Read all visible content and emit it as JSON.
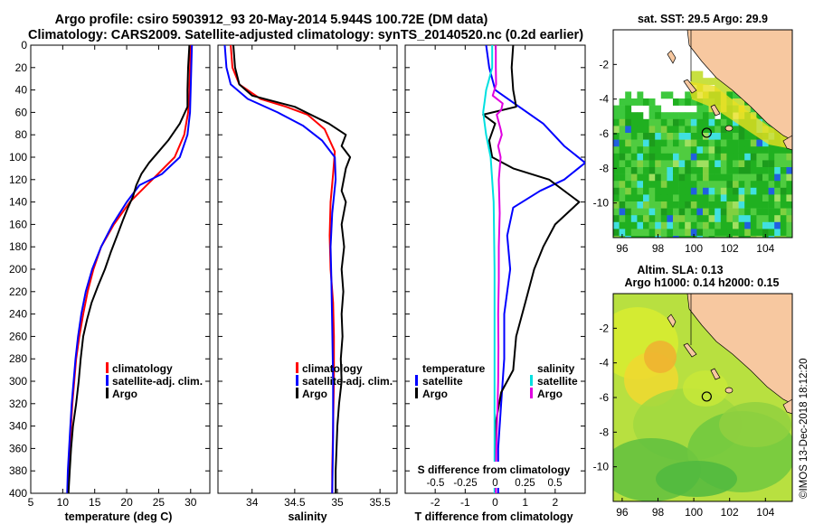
{
  "title": {
    "line1": "Argo profile: csiro 5903912_93 20-May-2014 5.944S 100.72E (DM data)",
    "line2": "Climatology: CARS2009. Satellite-adjusted climatology: synTS_20140520.nc (0.2d earlier)"
  },
  "colors": {
    "clim": "#ff0000",
    "sat": "#0000ff",
    "argo": "#000000",
    "sdiff": "#00e0e0",
    "sdiff_sat": "#e000e0"
  },
  "chart_data": [
    {
      "type": "line",
      "id": "temperature",
      "xlabel": "temperature (deg C)",
      "xlim": [
        5,
        33
      ],
      "ylim": [
        0,
        400
      ],
      "xticks": [
        5,
        10,
        15,
        20,
        25,
        30
      ],
      "yticks": [
        0,
        20,
        40,
        60,
        80,
        100,
        120,
        140,
        160,
        180,
        200,
        220,
        240,
        260,
        280,
        300,
        320,
        340,
        360,
        380,
        400
      ],
      "legend": [
        "climatology",
        "satellite-adj. clim.",
        "Argo"
      ],
      "series": [
        {
          "name": "climatology",
          "color": "clim",
          "points": [
            [
              30,
              0
            ],
            [
              29.9,
              20
            ],
            [
              29.8,
              40
            ],
            [
              29.6,
              60
            ],
            [
              29,
              80
            ],
            [
              27.5,
              100
            ],
            [
              24,
              120
            ],
            [
              20.5,
              140
            ],
            [
              18,
              160
            ],
            [
              16,
              180
            ],
            [
              14.8,
              200
            ],
            [
              13.9,
              220
            ],
            [
              13.2,
              240
            ],
            [
              12.6,
              260
            ],
            [
              12.1,
              280
            ],
            [
              11.8,
              300
            ],
            [
              11.5,
              320
            ],
            [
              11.3,
              340
            ],
            [
              11.1,
              360
            ],
            [
              10.9,
              380
            ],
            [
              10.8,
              400
            ]
          ]
        },
        {
          "name": "satellite-adj. clim.",
          "color": "sat",
          "points": [
            [
              30.2,
              0
            ],
            [
              30.1,
              20
            ],
            [
              30,
              40
            ],
            [
              29.9,
              60
            ],
            [
              29.5,
              80
            ],
            [
              28.3,
              100
            ],
            [
              25.5,
              115
            ],
            [
              22,
              125
            ],
            [
              20,
              140
            ],
            [
              17.8,
              160
            ],
            [
              16,
              180
            ],
            [
              14.6,
              200
            ],
            [
              13.6,
              220
            ],
            [
              12.9,
              240
            ],
            [
              12.4,
              260
            ],
            [
              12,
              280
            ],
            [
              11.7,
              300
            ],
            [
              11.4,
              320
            ],
            [
              11.2,
              340
            ],
            [
              11,
              360
            ],
            [
              10.8,
              380
            ],
            [
              10.7,
              400
            ]
          ]
        },
        {
          "name": "Argo",
          "color": "argo",
          "points": [
            [
              29.8,
              0
            ],
            [
              29.6,
              20
            ],
            [
              29.5,
              40
            ],
            [
              29.5,
              55
            ],
            [
              28.3,
              70
            ],
            [
              26.5,
              85
            ],
            [
              25,
              95
            ],
            [
              23.5,
              105
            ],
            [
              22.3,
              115
            ],
            [
              21.5,
              125
            ],
            [
              21,
              135
            ],
            [
              20.2,
              145
            ],
            [
              19.5,
              155
            ],
            [
              18.5,
              170
            ],
            [
              17.5,
              185
            ],
            [
              16.6,
              200
            ],
            [
              15.5,
              215
            ],
            [
              14.5,
              230
            ],
            [
              13.8,
              245
            ],
            [
              13.2,
              260
            ],
            [
              12.8,
              280
            ],
            [
              12.5,
              300
            ],
            [
              12.1,
              320
            ],
            [
              11.6,
              340
            ],
            [
              11.3,
              360
            ],
            [
              11.1,
              380
            ],
            [
              10.9,
              400
            ]
          ]
        }
      ]
    },
    {
      "type": "line",
      "id": "salinity",
      "xlabel": "salinity",
      "xlim": [
        33.6,
        35.7
      ],
      "ylim": [
        0,
        400
      ],
      "xticks": [
        34,
        34.5,
        35,
        35.5
      ],
      "legend": [
        "climatology",
        "satellite-adj. clim.",
        "Argo"
      ],
      "series": [
        {
          "name": "climatology",
          "color": "clim",
          "points": [
            [
              33.75,
              0
            ],
            [
              33.77,
              20
            ],
            [
              33.85,
              35
            ],
            [
              34.1,
              48
            ],
            [
              34.4,
              55
            ],
            [
              34.65,
              62
            ],
            [
              34.85,
              75
            ],
            [
              34.97,
              95
            ],
            [
              34.95,
              115
            ],
            [
              34.92,
              140
            ],
            [
              34.91,
              170
            ],
            [
              34.92,
              200
            ],
            [
              34.95,
              230
            ],
            [
              34.96,
              260
            ],
            [
              34.96,
              300
            ],
            [
              34.95,
              340
            ],
            [
              34.94,
              380
            ],
            [
              34.94,
              400
            ]
          ]
        },
        {
          "name": "satellite-adj. clim.",
          "color": "sat",
          "points": [
            [
              33.68,
              0
            ],
            [
              33.7,
              20
            ],
            [
              33.75,
              35
            ],
            [
              33.95,
              48
            ],
            [
              34.3,
              60
            ],
            [
              34.6,
              72
            ],
            [
              34.82,
              85
            ],
            [
              34.97,
              100
            ],
            [
              34.98,
              120
            ],
            [
              34.94,
              150
            ],
            [
              34.92,
              180
            ],
            [
              34.93,
              210
            ],
            [
              34.94,
              250
            ],
            [
              34.95,
              300
            ],
            [
              34.95,
              350
            ],
            [
              34.94,
              400
            ]
          ]
        },
        {
          "name": "Argo",
          "color": "argo",
          "points": [
            [
              33.78,
              0
            ],
            [
              33.8,
              20
            ],
            [
              33.85,
              35
            ],
            [
              34.0,
              45
            ],
            [
              34.5,
              55
            ],
            [
              34.9,
              70
            ],
            [
              35.1,
              80
            ],
            [
              35.05,
              90
            ],
            [
              35.15,
              100
            ],
            [
              35.1,
              110
            ],
            [
              35.05,
              130
            ],
            [
              35.1,
              140
            ],
            [
              35.05,
              160
            ],
            [
              35.08,
              180
            ],
            [
              35.05,
              200
            ],
            [
              35.07,
              220
            ],
            [
              35.05,
              240
            ],
            [
              35.06,
              260
            ],
            [
              35.04,
              280
            ],
            [
              35.05,
              300
            ],
            [
              35.02,
              320
            ],
            [
              35.0,
              340
            ],
            [
              34.99,
              360
            ],
            [
              34.98,
              380
            ],
            [
              34.98,
              400
            ]
          ]
        }
      ]
    },
    {
      "type": "line",
      "id": "differences",
      "xlabel": "T difference from climatology",
      "xlabel_top": "S difference from climatology",
      "xlim": [
        -3,
        3
      ],
      "ylim": [
        0,
        400
      ],
      "xticks": [
        -2,
        -1,
        0,
        1,
        2
      ],
      "xticks_top": [
        -0.5,
        -0.25,
        0,
        0.25,
        0.5
      ],
      "xticks_top_labels": [
        "-0.5",
        "-0.25",
        "0",
        "0.25",
        "0.5"
      ],
      "legend_left_title": "temperature",
      "legend_left": [
        "satellite",
        "Argo"
      ],
      "legend_right_title": "salinity",
      "legend_right": [
        "satellite",
        "Argo"
      ],
      "series": [
        {
          "name": "T satellite",
          "color": "sat",
          "points": [
            [
              -0.3,
              0
            ],
            [
              -0.2,
              20
            ],
            [
              0.0,
              40
            ],
            [
              0.8,
              55
            ],
            [
              1.6,
              70
            ],
            [
              2.3,
              90
            ],
            [
              3.0,
              105
            ],
            [
              2.3,
              120
            ],
            [
              1.5,
              130
            ],
            [
              0.6,
              145
            ],
            [
              0.4,
              170
            ],
            [
              0.5,
              200
            ],
            [
              0.3,
              240
            ],
            [
              0.3,
              280
            ],
            [
              0.2,
              320
            ],
            [
              0.1,
              360
            ],
            [
              0.1,
              400
            ]
          ]
        },
        {
          "name": "T Argo",
          "color": "argo",
          "points": [
            [
              0.6,
              0
            ],
            [
              0.55,
              20
            ],
            [
              0.6,
              40
            ],
            [
              0.7,
              55
            ],
            [
              -0.4,
              62
            ],
            [
              0.0,
              70
            ],
            [
              -0.2,
              85
            ],
            [
              -0.1,
              100
            ],
            [
              0.6,
              110
            ],
            [
              1.8,
              120
            ],
            [
              2.8,
              140
            ],
            [
              2.0,
              160
            ],
            [
              1.6,
              180
            ],
            [
              1.3,
              200
            ],
            [
              1.0,
              230
            ],
            [
              0.7,
              260
            ],
            [
              0.6,
              290
            ],
            [
              0.2,
              310
            ],
            [
              0.0,
              340
            ],
            [
              0.0,
              370
            ],
            [
              0.0,
              400
            ]
          ]
        },
        {
          "name": "S satellite",
          "color": "sdiff",
          "points": [
            [
              -0.1,
              0
            ],
            [
              -0.1,
              20
            ],
            [
              -0.2,
              30
            ],
            [
              -0.3,
              40
            ],
            [
              -0.35,
              50
            ],
            [
              -0.4,
              60
            ],
            [
              -0.3,
              80
            ],
            [
              -0.15,
              100
            ],
            [
              -0.05,
              140
            ],
            [
              -0.02,
              200
            ],
            [
              -0.02,
              260
            ],
            [
              -0.02,
              320
            ],
            [
              -0.02,
              400
            ]
          ]
        },
        {
          "name": "S Argo",
          "color": "sdiff_sat",
          "points": [
            [
              0.02,
              0
            ],
            [
              0.02,
              20
            ],
            [
              0.03,
              35
            ],
            [
              -0.08,
              45
            ],
            [
              0.25,
              52
            ],
            [
              0.2,
              58
            ],
            [
              0.05,
              62
            ],
            [
              0.18,
              75
            ],
            [
              0.22,
              80
            ],
            [
              0.1,
              90
            ],
            [
              0.18,
              100
            ],
            [
              0.12,
              120
            ],
            [
              0.15,
              150
            ],
            [
              0.12,
              180
            ],
            [
              0.12,
              210
            ],
            [
              0.1,
              240
            ],
            [
              0.11,
              270
            ],
            [
              0.1,
              300
            ],
            [
              0.08,
              320
            ],
            [
              0.06,
              340
            ],
            [
              0.04,
              360
            ],
            [
              0.02,
              380
            ],
            [
              0.02,
              400
            ]
          ]
        }
      ]
    },
    {
      "type": "heatmap",
      "id": "sst-map",
      "title": "sat. SST: 29.5 Argo: 29.9",
      "xlim": [
        95.5,
        105.5
      ],
      "ylim": [
        -12,
        0
      ],
      "xticks": [
        96,
        98,
        100,
        102,
        104
      ],
      "yticks": [
        -2,
        -4,
        -6,
        -8,
        -10
      ],
      "argo_position": [
        100.72,
        -5.944
      ]
    },
    {
      "type": "heatmap",
      "id": "sla-map",
      "title": "Altim. SLA: 0.13",
      "subtitle": "Argo h1000: 0.14 h2000: 0.15",
      "xlim": [
        95.5,
        105.5
      ],
      "ylim": [
        -12,
        0
      ],
      "xticks": [
        96,
        98,
        100,
        102,
        104
      ],
      "yticks": [
        -2,
        -4,
        -6,
        -8,
        -10
      ],
      "argo_position": [
        100.72,
        -5.944
      ]
    }
  ],
  "footer": "©IMOS 13-Dec-2018 18:12:20"
}
